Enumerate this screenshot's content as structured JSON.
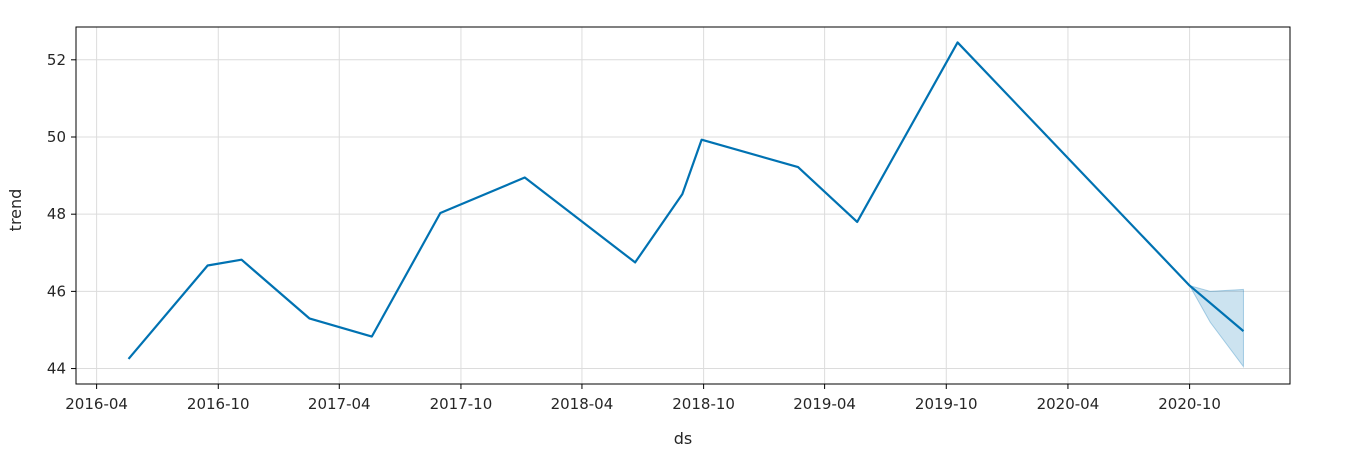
{
  "chart_data": {
    "type": "line",
    "xlabel": "ds",
    "ylabel": "trend",
    "x_ticks": [
      "2016-04",
      "2016-10",
      "2017-04",
      "2017-10",
      "2018-04",
      "2018-10",
      "2019-04",
      "2019-10",
      "2020-04",
      "2020-10"
    ],
    "y_ticks": [
      44,
      46,
      48,
      50,
      52
    ],
    "xlim": [
      "2016-03-01",
      "2021-03-01"
    ],
    "ylim": [
      43.6,
      52.85
    ],
    "grid": true,
    "series": [
      {
        "color": "#0072B2",
        "points": [
          {
            "x": "2016-05-19",
            "y": 44.25
          },
          {
            "x": "2016-09-15",
            "y": 46.67
          },
          {
            "x": "2016-11-05",
            "y": 46.82
          },
          {
            "x": "2017-02-15",
            "y": 45.3
          },
          {
            "x": "2017-05-20",
            "y": 44.83
          },
          {
            "x": "2017-08-31",
            "y": 48.03
          },
          {
            "x": "2018-01-05",
            "y": 48.95
          },
          {
            "x": "2018-06-20",
            "y": 46.75
          },
          {
            "x": "2018-08-30",
            "y": 48.52
          },
          {
            "x": "2018-09-28",
            "y": 49.93
          },
          {
            "x": "2019-02-20",
            "y": 49.22
          },
          {
            "x": "2019-05-20",
            "y": 47.8
          },
          {
            "x": "2019-10-18",
            "y": 52.45
          },
          {
            "x": "2020-10-01",
            "y": 46.15
          },
          {
            "x": "2020-12-21",
            "y": 44.97
          }
        ]
      }
    ],
    "uncertainty_band": {
      "color": "#0072B2",
      "points": [
        {
          "x": "2020-10-01",
          "lower": 46.15,
          "upper": 46.15
        },
        {
          "x": "2020-11-01",
          "lower": 45.2,
          "upper": 46.0
        },
        {
          "x": "2020-12-21",
          "lower": 44.05,
          "upper": 46.05
        }
      ]
    }
  }
}
